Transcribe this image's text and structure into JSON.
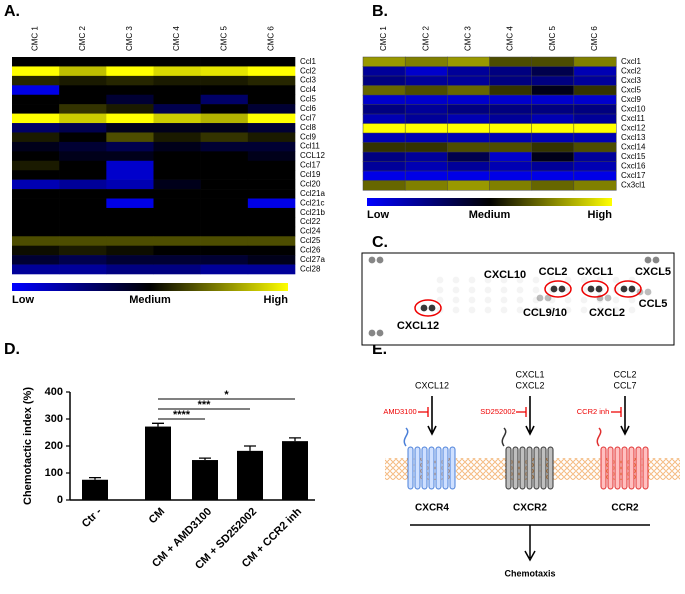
{
  "chart_data": [
    {
      "type": "heatmap",
      "panel": "A.",
      "columns": [
        "CMC 1",
        "CMC 2",
        "CMC 3",
        "CMC 4",
        "CMC 5",
        "CMC 6"
      ],
      "rows": [
        "Ccl1",
        "Ccl2",
        "Ccl3",
        "Ccl4",
        "Ccl5",
        "Ccl6",
        "Ccl7",
        "Ccl8",
        "Ccl9",
        "Ccl11",
        "CCL12",
        "Ccl17",
        "Ccl19",
        "Ccl20",
        "Ccl21a",
        "Ccl21c",
        "Ccl21b",
        "Ccl22",
        "Ccl24",
        "Ccl25",
        "Ccl26",
        "Ccl27a",
        "Ccl28"
      ],
      "values": [
        [
          0,
          0,
          0,
          0,
          0,
          0
        ],
        [
          1,
          0.75,
          1,
          0.85,
          0.9,
          1
        ],
        [
          0.15,
          0.1,
          0.15,
          0.1,
          0.1,
          0.15
        ],
        [
          -0.9,
          0,
          0,
          0,
          0,
          0
        ],
        [
          0,
          0,
          -0.2,
          0,
          -0.4,
          0
        ],
        [
          0,
          0.2,
          0.1,
          -0.3,
          0,
          -0.2
        ],
        [
          1,
          0.8,
          1,
          0.8,
          0.7,
          1
        ],
        [
          -0.4,
          -0.3,
          -0.1,
          -0.1,
          -0.1,
          -0.2
        ],
        [
          0.1,
          0,
          0.3,
          0.1,
          0.2,
          0.1
        ],
        [
          -0.1,
          -0.2,
          -0.3,
          -0.1,
          -0.2,
          -0.2
        ],
        [
          0,
          -0.1,
          -0.1,
          0,
          0,
          -0.1
        ],
        [
          0.1,
          0,
          -0.8,
          0,
          0,
          0
        ],
        [
          0,
          0,
          -0.8,
          0,
          0,
          0
        ],
        [
          -0.7,
          -0.6,
          -0.7,
          -0.1,
          0,
          0
        ],
        [
          0,
          0,
          0,
          0,
          0,
          0
        ],
        [
          0,
          0,
          -0.9,
          0,
          0,
          -0.9
        ],
        [
          0,
          0,
          0,
          0,
          0,
          0
        ],
        [
          0,
          0,
          0,
          0,
          0,
          0
        ],
        [
          0,
          0,
          0,
          0,
          0,
          0
        ],
        [
          0.3,
          0.3,
          0.3,
          0.3,
          0.3,
          0.3
        ],
        [
          0.05,
          0.1,
          0.05,
          0,
          0,
          0
        ],
        [
          -0.2,
          -0.3,
          -0.2,
          -0.2,
          -0.2,
          -0.1
        ],
        [
          -0.6,
          -0.6,
          -0.5,
          -0.5,
          -0.6,
          -0.6
        ]
      ],
      "zlim": [
        -1,
        1
      ],
      "colors": [
        "#0000ff",
        "#000000",
        "#ffff00"
      ],
      "zticks": [
        {
          "value": -1,
          "label": "Low"
        },
        {
          "value": 0,
          "label": "Medium"
        },
        {
          "value": 1,
          "label": "High"
        }
      ]
    },
    {
      "type": "heatmap",
      "panel": "B.",
      "columns": [
        "CMC 1",
        "CMC 2",
        "CMC 3",
        "CMC 4",
        "CMC 5",
        "CMC 6"
      ],
      "rows": [
        "Cxcl1",
        "Cxcl2",
        "Cxcl3",
        "Cxcl5",
        "Cxcl9",
        "Cxcl10",
        "Cxcl11",
        "Cxcl12",
        "Cxcl13",
        "Cxcl14",
        "Cxcl15",
        "Cxcl16",
        "Cxcl17",
        "Cx3cl1"
      ],
      "values": [
        [
          0.6,
          0.5,
          0.6,
          0.3,
          0.3,
          0.5
        ],
        [
          -0.6,
          -0.8,
          -0.6,
          -0.5,
          -0.3,
          -0.7
        ],
        [
          -0.5,
          -0.6,
          -0.6,
          -0.5,
          -0.5,
          -0.6
        ],
        [
          0.4,
          0.3,
          0.4,
          0.2,
          -0.1,
          0.2
        ],
        [
          -0.8,
          -0.8,
          -0.8,
          -0.8,
          -0.8,
          -0.8
        ],
        [
          -0.5,
          -0.6,
          -0.5,
          -0.5,
          -0.5,
          -0.5
        ],
        [
          -0.7,
          -0.6,
          -0.7,
          -0.6,
          -0.7,
          -0.6
        ],
        [
          1,
          1,
          1,
          1,
          1,
          1
        ],
        [
          -0.7,
          -0.7,
          -0.7,
          -0.7,
          -0.7,
          -0.7
        ],
        [
          0.2,
          0.2,
          0.3,
          0.3,
          0.2,
          0.3
        ],
        [
          -0.5,
          -0.6,
          -0.3,
          -0.8,
          -0.1,
          -0.6
        ],
        [
          -0.6,
          -0.7,
          -0.6,
          -0.7,
          -0.6,
          -0.7
        ],
        [
          -0.9,
          -0.9,
          -0.9,
          -0.9,
          -0.9,
          -0.9
        ],
        [
          0.4,
          0.5,
          0.6,
          0.5,
          0.4,
          0.5
        ]
      ],
      "zlim": [
        -1,
        1
      ],
      "colors": [
        "#0000ff",
        "#000000",
        "#ffff00"
      ],
      "zticks": [
        {
          "value": -1,
          "label": "Low"
        },
        {
          "value": 0,
          "label": "Medium"
        },
        {
          "value": 1,
          "label": "High"
        }
      ]
    },
    {
      "type": "bar",
      "panel": "D.",
      "y_label": "Chemotactic index (%)",
      "categories": [
        "Ctr -",
        "CM",
        "CM + AMD3100",
        "CM + SD252002",
        "CM + CCR2 inh"
      ],
      "values": [
        75,
        272,
        148,
        182,
        218
      ],
      "errors": [
        8,
        12,
        7,
        18,
        12
      ],
      "color": "#000000",
      "ylim": [
        0,
        400
      ],
      "yticks": [
        0,
        100,
        200,
        300,
        400
      ],
      "significance": [
        {
          "text": "*",
          "between": [
            "CM",
            "CM + CCR2 inh"
          ]
        },
        {
          "text": "***",
          "between": [
            "CM",
            "CM + SD252002"
          ]
        },
        {
          "text": "****",
          "between": [
            "CM",
            "CM + AMD3100"
          ]
        }
      ]
    }
  ],
  "blot": {
    "panel": "C.",
    "labels": [
      "CXCL10",
      "CCL2",
      "CXCL1",
      "CXCL5",
      "CCL9/10",
      "CXCL2",
      "CCL5",
      "CXCL12"
    ]
  },
  "diagram": {
    "panel": "E.",
    "ligands": [
      [
        "CXCL12"
      ],
      [
        "CXCL1",
        "CXCL2"
      ],
      [
        "CCL2",
        "CCL7"
      ]
    ],
    "inhibitors": [
      "AMD3100",
      "SD252002",
      "CCR2 inh"
    ],
    "receptors": [
      "CXCR4",
      "CXCR2",
      "CCR2"
    ],
    "outcome": "Chemotaxis"
  }
}
